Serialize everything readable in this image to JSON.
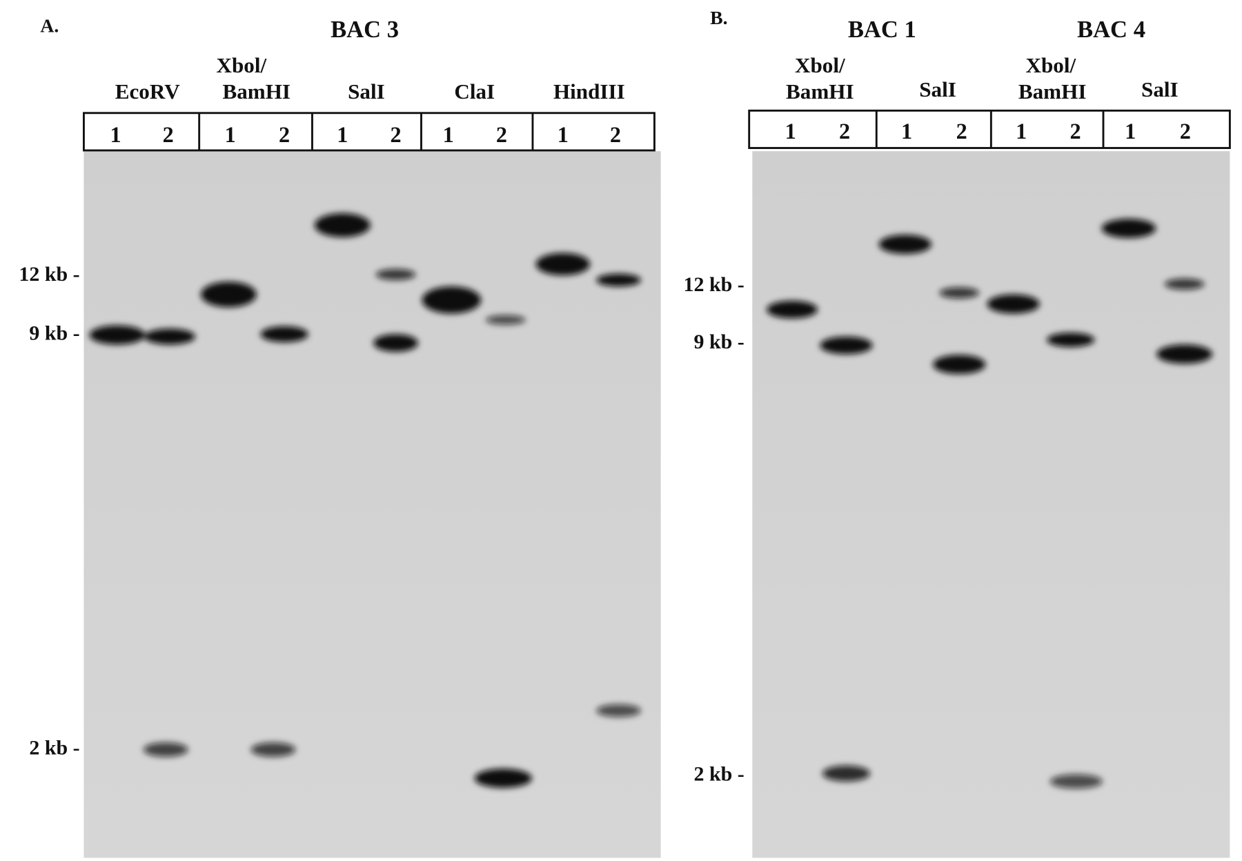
{
  "panels": [
    {
      "label": "A.",
      "groups": [
        {
          "title": "BAC 3",
          "digests": [
            {
              "name": [
                "EcoRV"
              ],
              "lanes": [
                "1",
                "2"
              ]
            },
            {
              "name": [
                "Xbol/",
                "BamHI"
              ],
              "lanes": [
                "1",
                "2"
              ]
            },
            {
              "name": [
                "SalI"
              ],
              "lanes": [
                "1",
                "2"
              ]
            },
            {
              "name": [
                "ClaI"
              ],
              "lanes": [
                "1",
                "2"
              ]
            },
            {
              "name": [
                "HindIII"
              ],
              "lanes": [
                "1",
                "2"
              ]
            }
          ]
        }
      ],
      "markers": [
        "12 kb -",
        "9 kb -",
        "2 kb -"
      ]
    },
    {
      "label": "B.",
      "groups": [
        {
          "title": "BAC 1",
          "digests": [
            {
              "name": [
                "Xbol/",
                "BamHI"
              ],
              "lanes": [
                "1",
                "2"
              ]
            },
            {
              "name": [
                "SalI"
              ],
              "lanes": [
                "1",
                "2"
              ]
            }
          ]
        },
        {
          "title": "BAC 4",
          "digests": [
            {
              "name": [
                "Xbol/",
                "BamHI"
              ],
              "lanes": [
                "1",
                "2"
              ]
            },
            {
              "name": [
                "SalI"
              ],
              "lanes": [
                "1",
                "2"
              ]
            }
          ]
        }
      ],
      "markers": [
        "12 kb -",
        "9 kb -",
        "2 kb -"
      ]
    }
  ]
}
